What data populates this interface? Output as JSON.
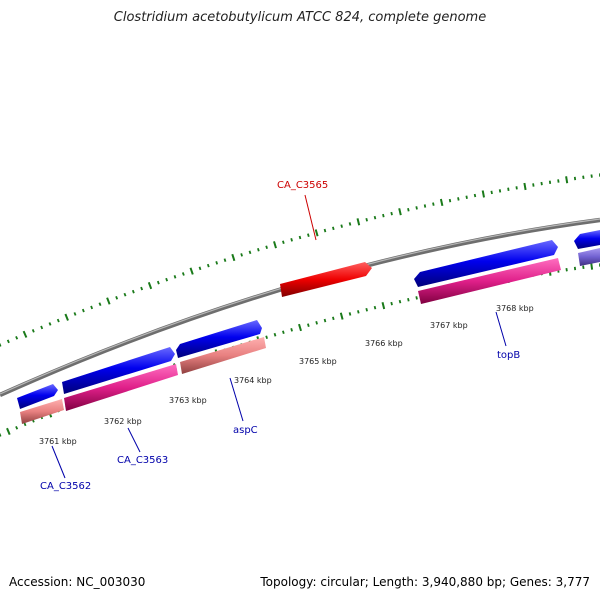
{
  "title": "Clostridium acetobutylicum ATCC 824, complete genome",
  "footer": {
    "accession": "Accession: NC_003030",
    "topology": "Topology: circular; Length: 3,940,880 bp; Genes: 3,777"
  },
  "kbp_labels": [
    "3761 kbp",
    "3762 kbp",
    "3763 kbp",
    "3764 kbp",
    "3765 kbp",
    "3766 kbp",
    "3767 kbp",
    "3768 kbp"
  ],
  "gene_labels": [
    "CA_C3562",
    "CA_C3563",
    "aspC",
    "CA_C3565",
    "topB"
  ],
  "colors": {
    "backbone": "#808080",
    "cds_forward": "#0000e6",
    "cds_reverse": "#2222e0",
    "gene_pink": "#e0288c",
    "gene_salmon": "#e88080",
    "gene_red": "#ee1111",
    "tick_green": "#1a7a1a",
    "label_blue": "#0000aa",
    "label_red": "#cc0000"
  }
}
